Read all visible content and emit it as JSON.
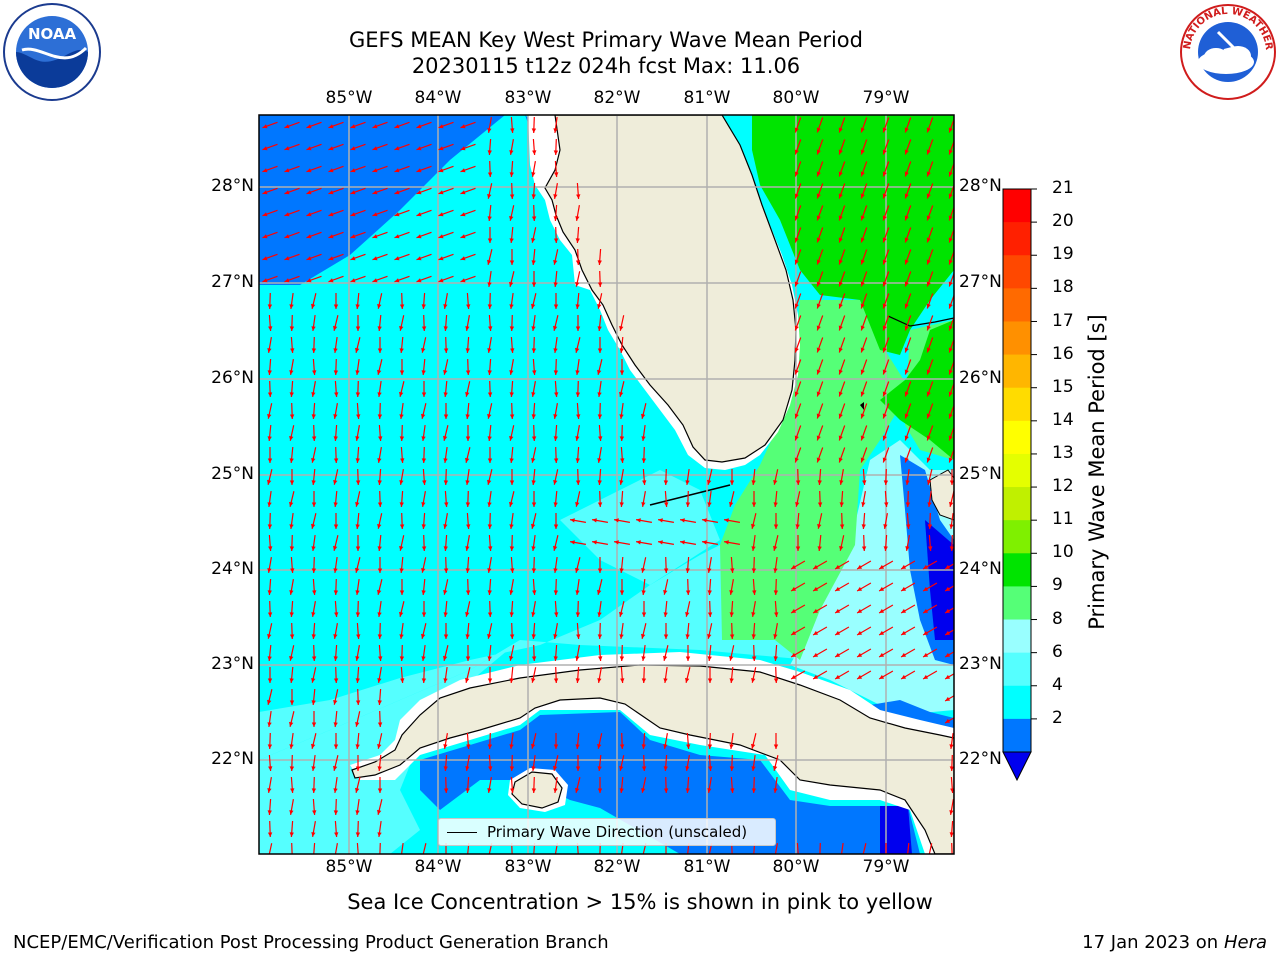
{
  "title_line1": "GEFS MEAN Key West Primary Wave Mean Period",
  "title_line2": "20230115 t12z 024h fcst   Max: 11.06",
  "lon_labels": [
    "85°W",
    "84°W",
    "83°W",
    "82°W",
    "81°W",
    "80°W",
    "79°W"
  ],
  "lat_labels": [
    "28°N",
    "27°N",
    "26°N",
    "25°N",
    "24°N",
    "23°N",
    "22°N"
  ],
  "colorbar": {
    "label": "Primary Wave Mean Period [s]",
    "ticks": [
      "21",
      "20",
      "19",
      "18",
      "17",
      "16",
      "15",
      "14",
      "13",
      "12",
      "11",
      "10",
      "9",
      "8",
      "6",
      "4",
      "2"
    ],
    "colors": [
      "#ff0000",
      "#ff2000",
      "#ff4800",
      "#ff6a00",
      "#ff9000",
      "#ffb600",
      "#ffdc00",
      "#ffff00",
      "#e4ff00",
      "#c0f000",
      "#7ff000",
      "#00e400",
      "#55ff77",
      "#99ffff",
      "#55ffff",
      "#00ffff",
      "#0077ff"
    ],
    "extend_color": "#0000ee"
  },
  "legend": {
    "label": "Primary Wave Direction (unscaled)"
  },
  "caption": "Sea Ice Concentration > 15% is shown in pink to yellow",
  "footer_left": "NCEP/EMC/Verification Post Processing Product Generation Branch",
  "footer_right_date": "17 Jan 2023 on",
  "footer_right_host": "Hera",
  "logos": {
    "noaa_text": "NOAA",
    "nws_text": "NATIONAL WEATHER SERVICE"
  },
  "colors": {
    "land": "#efedda",
    "blue": "#0077ff",
    "cyan": "#00ffff",
    "cyan2": "#55ffff",
    "lightcyan": "#99ffff",
    "lightgreen": "#55ff77",
    "green": "#00e400",
    "darkblue": "#0000ee",
    "arrow": "#ff0000",
    "grid": "#b0b0b0"
  }
}
